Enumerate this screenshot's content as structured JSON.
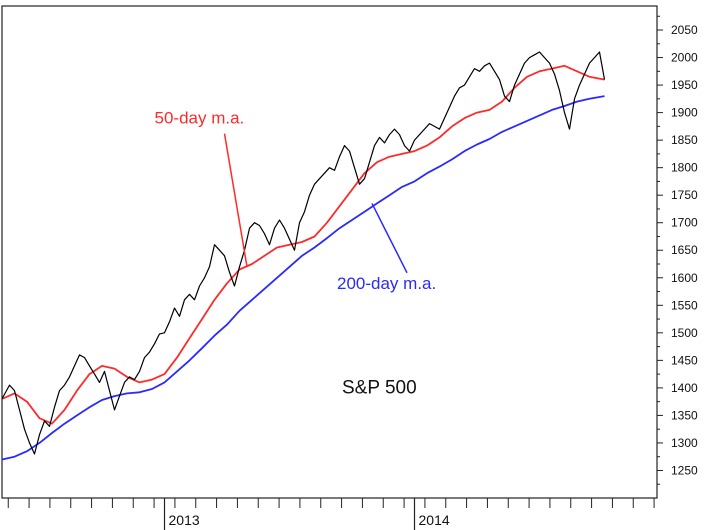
{
  "chart_data": {
    "type": "line",
    "title": "S&P 500",
    "xlabel": "",
    "ylabel": "",
    "x_tick_labels": [
      {
        "label": "2013",
        "x": 2013.0
      },
      {
        "label": "2014",
        "x": 2014.0
      }
    ],
    "x_range": [
      2012.35,
      2014.97
    ],
    "ylim": [
      1200,
      2090
    ],
    "y_ticks": [
      1250,
      1300,
      1350,
      1400,
      1450,
      1500,
      1550,
      1600,
      1650,
      1700,
      1750,
      1800,
      1850,
      1900,
      1950,
      2000,
      2050
    ],
    "grid": false,
    "axis_side": "right",
    "series": [
      {
        "name": "",
        "color": "#000000",
        "x": [
          2012.35,
          2012.38,
          2012.4,
          2012.42,
          2012.44,
          2012.46,
          2012.48,
          2012.5,
          2012.52,
          2012.54,
          2012.56,
          2012.58,
          2012.6,
          2012.62,
          2012.64,
          2012.66,
          2012.68,
          2012.7,
          2012.72,
          2012.74,
          2012.76,
          2012.78,
          2012.8,
          2012.82,
          2012.84,
          2012.86,
          2012.88,
          2012.9,
          2012.92,
          2012.94,
          2012.96,
          2012.98,
          2013.0,
          2013.02,
          2013.04,
          2013.06,
          2013.08,
          2013.1,
          2013.12,
          2013.14,
          2013.16,
          2013.18,
          2013.2,
          2013.22,
          2013.24,
          2013.26,
          2013.28,
          2013.3,
          2013.32,
          2013.34,
          2013.36,
          2013.38,
          2013.4,
          2013.42,
          2013.44,
          2013.46,
          2013.48,
          2013.5,
          2013.52,
          2013.54,
          2013.56,
          2013.58,
          2013.6,
          2013.62,
          2013.64,
          2013.66,
          2013.68,
          2013.7,
          2013.72,
          2013.74,
          2013.76,
          2013.78,
          2013.8,
          2013.82,
          2013.84,
          2013.86,
          2013.88,
          2013.9,
          2013.92,
          2013.94,
          2013.96,
          2013.98,
          2014.0,
          2014.02,
          2014.04,
          2014.06,
          2014.08,
          2014.1,
          2014.12,
          2014.14,
          2014.16,
          2014.18,
          2014.2,
          2014.22,
          2014.24,
          2014.26,
          2014.28,
          2014.3,
          2014.32,
          2014.34,
          2014.36,
          2014.38,
          2014.4,
          2014.42,
          2014.44,
          2014.46,
          2014.48,
          2014.5,
          2014.52,
          2014.54,
          2014.56,
          2014.58,
          2014.6,
          2014.62,
          2014.64,
          2014.66,
          2014.68,
          2014.7,
          2014.72,
          2014.74,
          2014.76
        ],
        "y": [
          1380,
          1405,
          1395,
          1360,
          1325,
          1300,
          1280,
          1315,
          1340,
          1330,
          1365,
          1395,
          1405,
          1420,
          1440,
          1460,
          1455,
          1440,
          1425,
          1410,
          1430,
          1395,
          1360,
          1385,
          1410,
          1420,
          1415,
          1430,
          1455,
          1465,
          1480,
          1498,
          1500,
          1520,
          1545,
          1530,
          1560,
          1570,
          1560,
          1585,
          1600,
          1620,
          1660,
          1650,
          1640,
          1610,
          1585,
          1620,
          1650,
          1690,
          1700,
          1695,
          1680,
          1660,
          1690,
          1705,
          1690,
          1670,
          1650,
          1700,
          1720,
          1750,
          1770,
          1780,
          1790,
          1800,
          1795,
          1820,
          1840,
          1830,
          1800,
          1770,
          1780,
          1810,
          1840,
          1855,
          1845,
          1860,
          1870,
          1860,
          1840,
          1830,
          1850,
          1860,
          1870,
          1880,
          1875,
          1870,
          1890,
          1910,
          1930,
          1945,
          1950,
          1965,
          1980,
          1975,
          1985,
          1990,
          1975,
          1960,
          1930,
          1920,
          1950,
          1970,
          1990,
          2000,
          2005,
          2010,
          2000,
          1990,
          1970,
          1940,
          1900,
          1870,
          1925,
          1950,
          1970,
          1990,
          2000,
          2010,
          1960
        ],
        "note_on_x": ""
      },
      {
        "name": "50-day m.a.",
        "color": "#ff2a2a",
        "x": [
          2012.35,
          2012.4,
          2012.45,
          2012.5,
          2012.55,
          2012.6,
          2012.65,
          2012.7,
          2012.75,
          2012.8,
          2012.85,
          2012.9,
          2012.95,
          2013.0,
          2013.05,
          2013.1,
          2013.15,
          2013.2,
          2013.25,
          2013.3,
          2013.35,
          2013.4,
          2013.45,
          2013.5,
          2013.55,
          2013.6,
          2013.65,
          2013.7,
          2013.75,
          2013.8,
          2013.85,
          2013.9,
          2013.95,
          2014.0,
          2014.05,
          2014.1,
          2014.15,
          2014.2,
          2014.25,
          2014.3,
          2014.35,
          2014.4,
          2014.45,
          2014.5,
          2014.55,
          2014.6,
          2014.65,
          2014.7,
          2014.76
        ],
        "y": [
          1380,
          1390,
          1375,
          1345,
          1335,
          1360,
          1395,
          1425,
          1440,
          1435,
          1420,
          1410,
          1415,
          1425,
          1455,
          1490,
          1525,
          1560,
          1590,
          1615,
          1625,
          1640,
          1655,
          1660,
          1665,
          1675,
          1700,
          1730,
          1760,
          1790,
          1810,
          1820,
          1825,
          1830,
          1840,
          1855,
          1875,
          1890,
          1900,
          1905,
          1920,
          1945,
          1965,
          1975,
          1980,
          1985,
          1975,
          1965,
          1960
        ]
      },
      {
        "name": "200-day m.a.",
        "color": "#2a2aff",
        "x": [
          2012.35,
          2012.4,
          2012.45,
          2012.5,
          2012.55,
          2012.6,
          2012.65,
          2012.7,
          2012.75,
          2012.8,
          2012.85,
          2012.9,
          2012.95,
          2013.0,
          2013.05,
          2013.1,
          2013.15,
          2013.2,
          2013.25,
          2013.3,
          2013.35,
          2013.4,
          2013.45,
          2013.5,
          2013.55,
          2013.6,
          2013.65,
          2013.7,
          2013.75,
          2013.8,
          2013.85,
          2013.9,
          2013.95,
          2014.0,
          2014.05,
          2014.1,
          2014.15,
          2014.2,
          2014.25,
          2014.3,
          2014.35,
          2014.4,
          2014.45,
          2014.5,
          2014.55,
          2014.6,
          2014.65,
          2014.7,
          2014.76
        ],
        "y": [
          1270,
          1275,
          1285,
          1300,
          1318,
          1335,
          1350,
          1365,
          1378,
          1385,
          1390,
          1392,
          1398,
          1410,
          1430,
          1450,
          1472,
          1495,
          1515,
          1540,
          1560,
          1580,
          1600,
          1620,
          1640,
          1655,
          1672,
          1690,
          1705,
          1720,
          1735,
          1750,
          1765,
          1775,
          1790,
          1802,
          1815,
          1830,
          1842,
          1852,
          1865,
          1875,
          1885,
          1895,
          1905,
          1912,
          1920,
          1925,
          1930
        ]
      }
    ],
    "annotations": [
      {
        "text": "50-day m.a.",
        "color": "#ff2a2a",
        "x": 2013.0,
        "y": 1880,
        "arrow_to_x": 2013.33,
        "arrow_to_y": 1620
      },
      {
        "text": "200-day m.a.",
        "color": "#2a2aff",
        "x": 2013.93,
        "y": 1580,
        "arrow_to_x": 2013.83,
        "arrow_to_y": 1735
      },
      {
        "text": "S&P 500",
        "color": "#000000",
        "x": 2013.95,
        "y": 1390
      }
    ]
  }
}
